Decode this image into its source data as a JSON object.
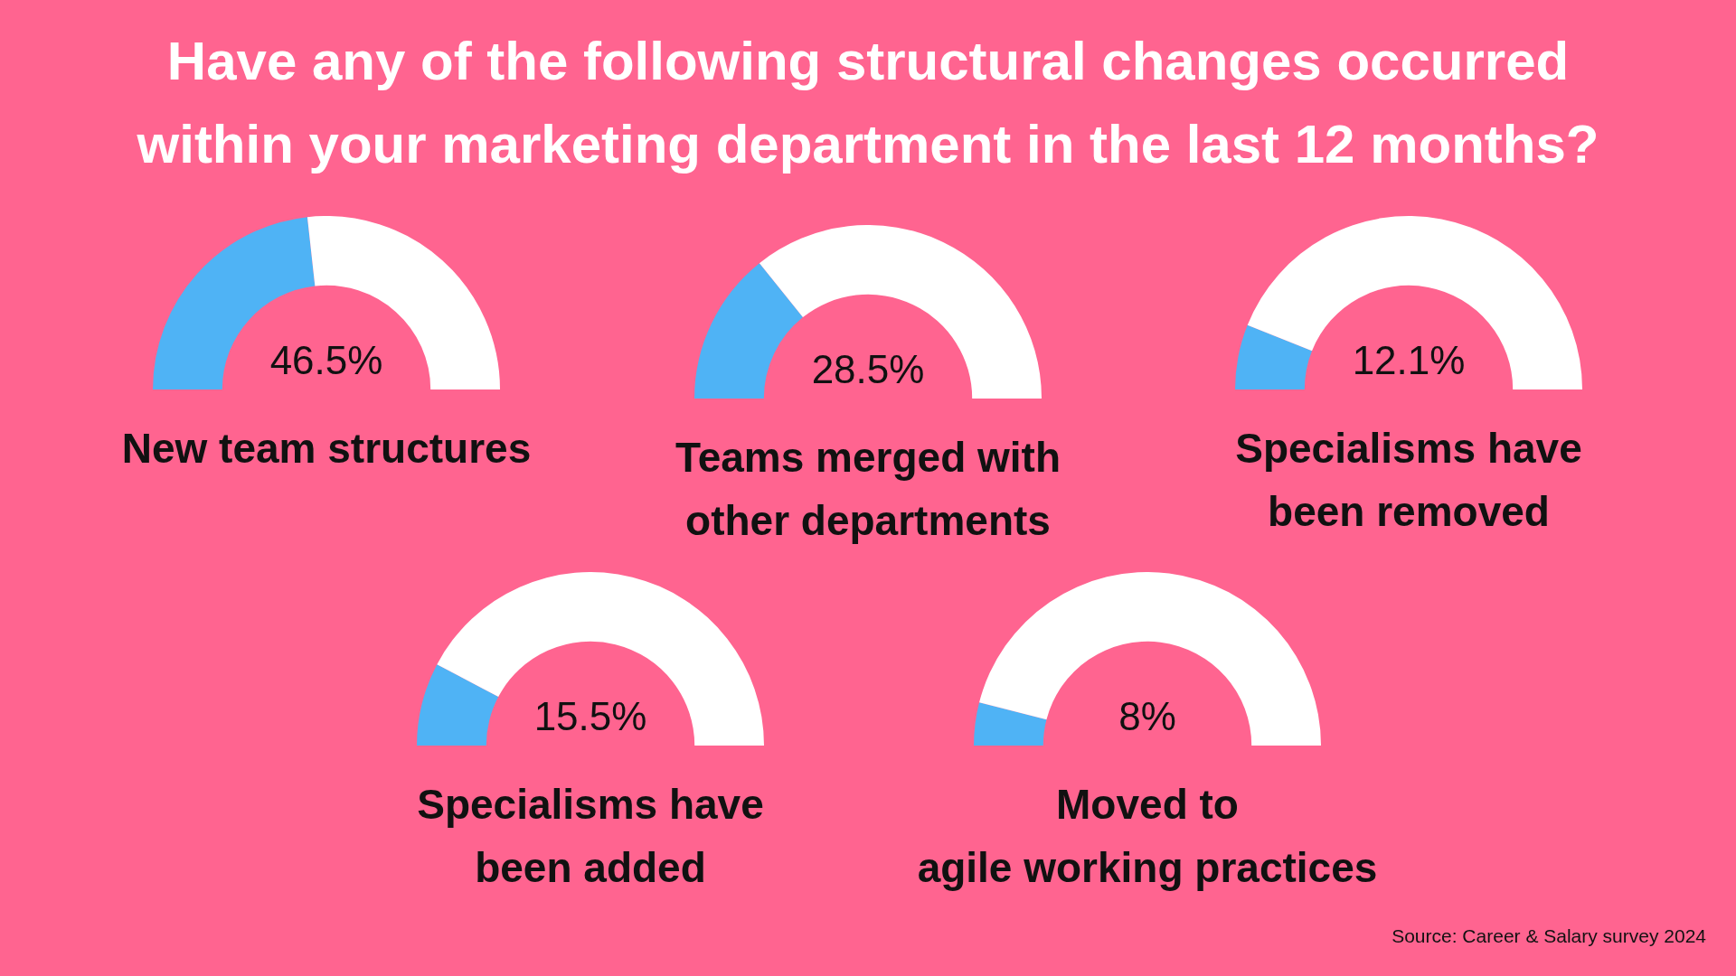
{
  "chart_data": [
    {
      "type": "other",
      "title": "Have any of the following structural changes occurred within your marketing department in the last 12 months?"
    },
    {
      "type": "donut",
      "title": "New team structures",
      "categories": [
        null,
        null
      ],
      "values": [
        46.5,
        53.5
      ],
      "colors": [
        "#4fb3f5",
        "#ffffff"
      ],
      "annotations": [
        "46.5%"
      ]
    },
    {
      "type": "donut",
      "title": "Teams merged with\nother departments",
      "categories": [
        null,
        null
      ],
      "values": [
        28.5,
        71.5
      ],
      "colors": [
        "#4fb3f5",
        "#ffffff"
      ],
      "annotations": [
        "28.5%"
      ]
    },
    {
      "type": "donut",
      "title": "Specialisms have\nbeen removed",
      "categories": [
        null,
        null
      ],
      "values": [
        12.1,
        87.9
      ],
      "colors": [
        "#4fb3f5",
        "#ffffff"
      ],
      "annotations": [
        "12.1%"
      ]
    },
    {
      "type": "donut",
      "title": "Specialisms have\nbeen added",
      "categories": [
        null,
        null
      ],
      "values": [
        15.5,
        84.5
      ],
      "colors": [
        "#4fb3f5",
        "#ffffff"
      ],
      "annotations": [
        "15.5%"
      ]
    },
    {
      "type": "donut",
      "title": "Moved to\nagile working practices",
      "categories": [
        null,
        null
      ],
      "values": [
        8,
        92
      ],
      "colors": [
        "#4fb3f5",
        "#ffffff"
      ],
      "annotations": [
        "8%"
      ]
    },
    {
      "type": "other",
      "annotations": [
        "Source: Career & Salary survey 2024"
      ]
    }
  ]
}
